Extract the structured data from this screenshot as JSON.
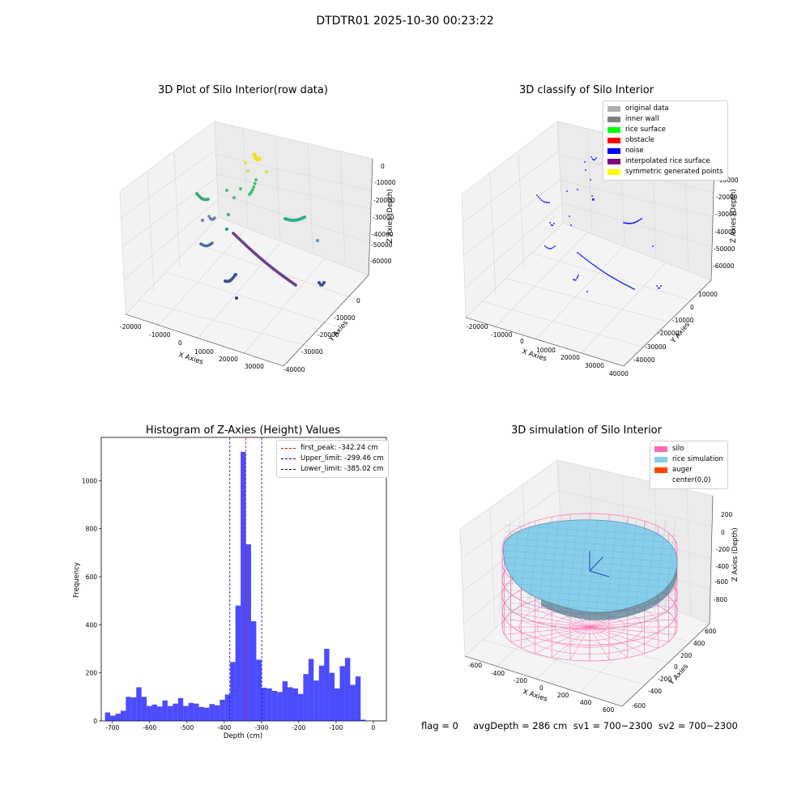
{
  "figure": {
    "title": "DTDTR01 2025-10-30 00:23:22",
    "footer": "flag = 0     avgDepth = 286 cm  sv1 = 700~2300  sv2 = 700~2300"
  },
  "panels": {
    "raw": {
      "title": "3D Plot of Silo Interior(row data)",
      "xlabel": "X Axies",
      "ylabel": "Y Axies",
      "zlabel": "Z Axies (Depth)",
      "xticks": [
        "-20000",
        "-10000",
        "0",
        "10000",
        "20000",
        "30000"
      ],
      "yticks": [
        "0",
        "-10000",
        "-20000",
        "-30000",
        "-40000"
      ],
      "zticks": [
        "0",
        "-10000",
        "-20000",
        "-30000",
        "-40000",
        "-50000",
        "-60000"
      ]
    },
    "classify": {
      "title": "3D classify of Silo Interior",
      "xlabel": "X Axies",
      "ylabel": "Y Axies",
      "zlabel": "Z Axies (Depth)",
      "xticks": [
        "-20000",
        "-10000",
        "0",
        "10000",
        "20000",
        "30000",
        "40000"
      ],
      "yticks": [
        "10000",
        "0",
        "-10000",
        "-20000",
        "-30000",
        "-40000"
      ],
      "zticks": [
        "0",
        "-10000",
        "-20000",
        "-30000",
        "-40000",
        "-50000",
        "-60000"
      ],
      "legend": [
        {
          "label": "original data",
          "color": "#b0b0b0"
        },
        {
          "label": "inner wall",
          "color": "#808080"
        },
        {
          "label": "rice surface",
          "color": "#00ff00"
        },
        {
          "label": "obstacle",
          "color": "#ff0000"
        },
        {
          "label": "noise",
          "color": "#0000ff"
        },
        {
          "label": "interpolated rice surface",
          "color": "#800080"
        },
        {
          "label": "symmetric generated points",
          "color": "#ffff00"
        }
      ]
    },
    "simulation": {
      "title": "3D simulation of Silo Interior",
      "xlabel": "X Axies",
      "ylabel": "Y Axies",
      "zlabel": "Z Axies (Depth)",
      "xticks": [
        "-600",
        "-400",
        "-200",
        "0",
        "200",
        "400",
        "600"
      ],
      "yticks": [
        "600",
        "400",
        "200",
        "0",
        "-200",
        "-400",
        "-600"
      ],
      "zticks": [
        "200",
        "0",
        "-200",
        "-400",
        "-600",
        "-800"
      ],
      "legend": [
        {
          "label": "silo",
          "color": "#ff69b4"
        },
        {
          "label": "rice simulation",
          "color": "#87ceeb"
        },
        {
          "label": "auger",
          "color": "#ff4500"
        },
        {
          "label": "center(0,0)",
          "color": "#ffffff"
        }
      ]
    }
  },
  "chart_data": {
    "type": "bar",
    "title": "Histogram of Z-Axies (Height) Values",
    "xlabel": "Depth (cm)",
    "ylabel": "Frequency",
    "xlim": [
      -730,
      35
    ],
    "ylim": [
      0,
      1180
    ],
    "xticks": [
      -700,
      -600,
      -500,
      -400,
      -300,
      -200,
      -100,
      0
    ],
    "yticks": [
      0,
      200,
      400,
      600,
      800,
      1000
    ],
    "bin_start": -720,
    "bin_width": 14,
    "values": [
      35,
      22,
      30,
      42,
      100,
      98,
      140,
      100,
      62,
      68,
      60,
      85,
      62,
      72,
      95,
      62,
      75,
      72,
      58,
      55,
      70,
      65,
      88,
      110,
      245,
      480,
      1120,
      735,
      415,
      255,
      138,
      135,
      125,
      120,
      165,
      140,
      135,
      112,
      195,
      258,
      168,
      230,
      300,
      200,
      135,
      228,
      262,
      150,
      185,
      5
    ],
    "color": "#0000ff",
    "lines": [
      {
        "label": "first_peak: -342.24 cm",
        "x": -342.24,
        "color": "#ff0000"
      },
      {
        "label": "Upper_limit: -299.46 cm",
        "x": -299.46,
        "color": "#0000ff"
      },
      {
        "label": "Lower_limit: -385.02 cm",
        "x": -385.02,
        "color": "#0000ff"
      }
    ]
  }
}
